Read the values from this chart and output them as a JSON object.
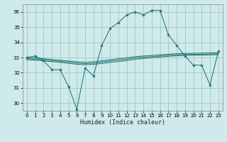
{
  "xlabel": "Humidex (Indice chaleur)",
  "bg_color": "#ceeaea",
  "grid_color": "#9bbfbf",
  "line_color": "#1a6e6e",
  "xlim": [
    -0.5,
    23.5
  ],
  "ylim": [
    29.5,
    36.5
  ],
  "xticks": [
    0,
    1,
    2,
    3,
    4,
    5,
    6,
    7,
    8,
    9,
    10,
    11,
    12,
    13,
    14,
    15,
    16,
    17,
    18,
    19,
    20,
    21,
    22,
    23
  ],
  "yticks": [
    30,
    31,
    32,
    33,
    34,
    35,
    36
  ],
  "main_y": [
    33.0,
    33.1,
    32.8,
    32.2,
    32.2,
    31.1,
    29.6,
    32.3,
    31.8,
    33.8,
    34.9,
    35.3,
    35.8,
    36.0,
    35.8,
    36.1,
    36.1,
    34.5,
    33.8,
    33.1,
    32.5,
    32.5,
    31.2,
    33.4
  ],
  "smooth1_y": [
    33.0,
    32.98,
    32.92,
    32.87,
    32.82,
    32.77,
    32.72,
    32.68,
    32.72,
    32.78,
    32.85,
    32.92,
    32.98,
    33.05,
    33.1,
    33.14,
    33.18,
    33.22,
    33.25,
    33.27,
    33.28,
    33.29,
    33.3,
    33.32
  ],
  "smooth2_y": [
    32.85,
    32.83,
    32.78,
    32.73,
    32.68,
    32.62,
    32.56,
    32.52,
    32.55,
    32.61,
    32.68,
    32.74,
    32.8,
    32.88,
    32.94,
    32.98,
    33.03,
    33.08,
    33.11,
    33.14,
    33.15,
    33.16,
    33.17,
    33.19
  ],
  "smooth3_y": [
    32.92,
    32.9,
    32.85,
    32.8,
    32.75,
    32.7,
    32.64,
    32.6,
    32.63,
    32.7,
    32.77,
    32.83,
    32.89,
    32.97,
    33.02,
    33.06,
    33.1,
    33.15,
    33.18,
    33.2,
    33.21,
    33.22,
    33.23,
    33.25
  ]
}
